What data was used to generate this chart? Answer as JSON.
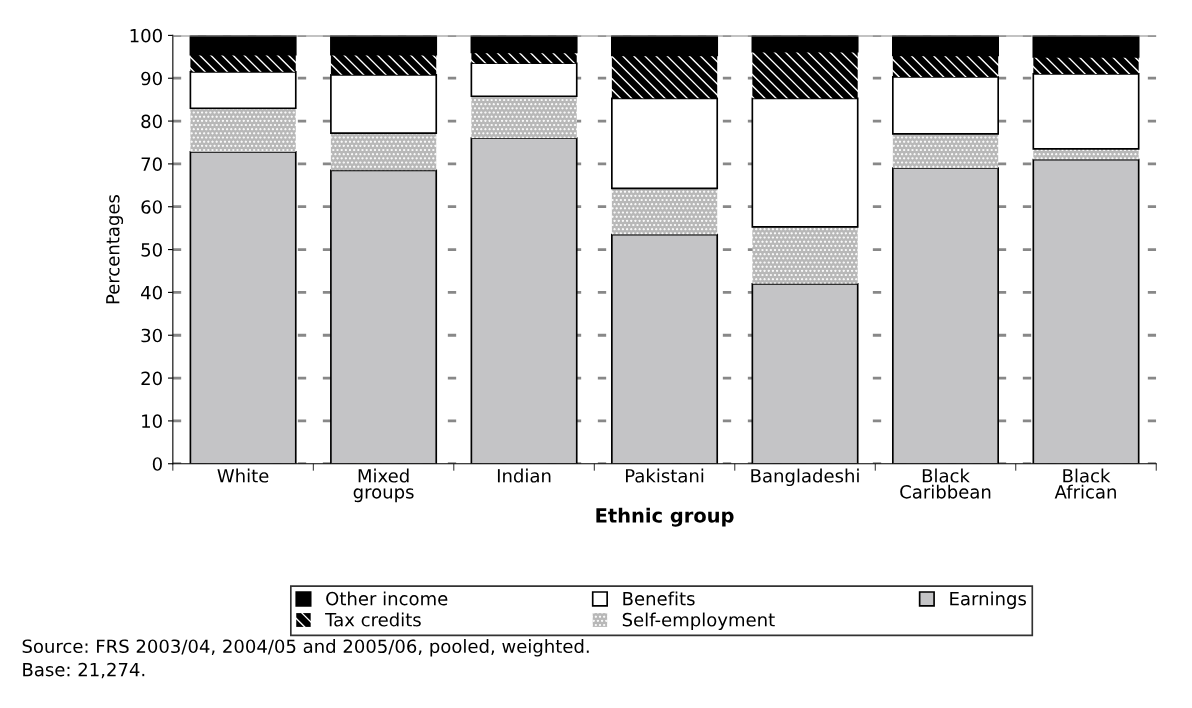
{
  "chart_data": {
    "type": "bar",
    "stacked": true,
    "xlabel": "Ethnic group",
    "ylabel": "Percentages",
    "categories": [
      "White",
      "Mixed\ngroups",
      "Indian",
      "Pakistani",
      "Bangladeshi",
      "Black\nCaribbean",
      "Black\nAfrican"
    ],
    "series": [
      {
        "name": "Earnings",
        "color": "#c4c4c6",
        "values": [
          72.8,
          68.5,
          76,
          53.5,
          42,
          69,
          71
        ]
      },
      {
        "name": "Self-employment",
        "color": "#b8b8b8",
        "values": [
          10.2,
          8.7,
          9.8,
          10.8,
          13.3,
          8,
          2.5
        ]
      },
      {
        "name": "Benefits",
        "color": "#ffffff",
        "values": [
          8.5,
          13.6,
          7.7,
          21,
          30,
          13.3,
          17.5
        ]
      },
      {
        "name": "Tax credits",
        "color": "#000000",
        "values": [
          4,
          4.7,
          2.5,
          10,
          10.9,
          5,
          4
        ]
      },
      {
        "name": "Other income",
        "color": "#000000",
        "values": [
          4.5,
          4.5,
          4,
          4.7,
          3.8,
          4.7,
          5
        ]
      }
    ],
    "ylim": [
      0,
      100
    ],
    "yticks": [
      0,
      10,
      20,
      30,
      40,
      50,
      60,
      70,
      80,
      90,
      100
    ],
    "grid": "y",
    "legend": "bottom",
    "annotations": [
      "Source: FRS 2003/04, 2004/05 and 2005/06, pooled, weighted.",
      "Base: 21,274."
    ]
  }
}
